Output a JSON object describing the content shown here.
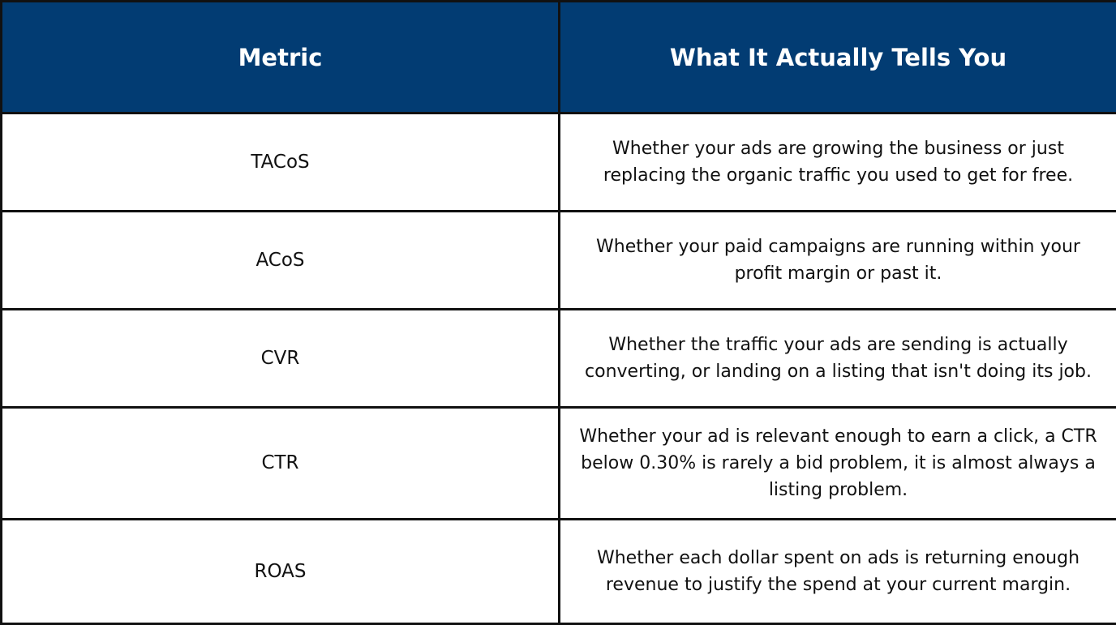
{
  "table": {
    "header": {
      "metric": "Metric",
      "description": "What It Actually Tells You"
    },
    "rows": [
      {
        "metric": "TACoS",
        "description": "Whether your ads are growing the business or just replacing the organic traffic you used to get for free."
      },
      {
        "metric": "ACoS",
        "description": "Whether your paid campaigns are running within your profit margin or past it."
      },
      {
        "metric": "CVR",
        "description": "Whether the traffic your ads are sending is actually converting, or landing on a listing that isn't doing its job."
      },
      {
        "metric": "CTR",
        "description": "Whether your ad is relevant enough to earn a click, a CTR below 0.30% is rarely a bid problem, it is almost always a listing problem."
      },
      {
        "metric": "ROAS",
        "description": "Whether each dollar spent on ads is returning enough revenue to justify the spend at your current margin."
      }
    ]
  },
  "colors": {
    "header_background": "#023c73",
    "header_text": "#ffffff",
    "border": "#111111",
    "body_text": "#111111"
  }
}
